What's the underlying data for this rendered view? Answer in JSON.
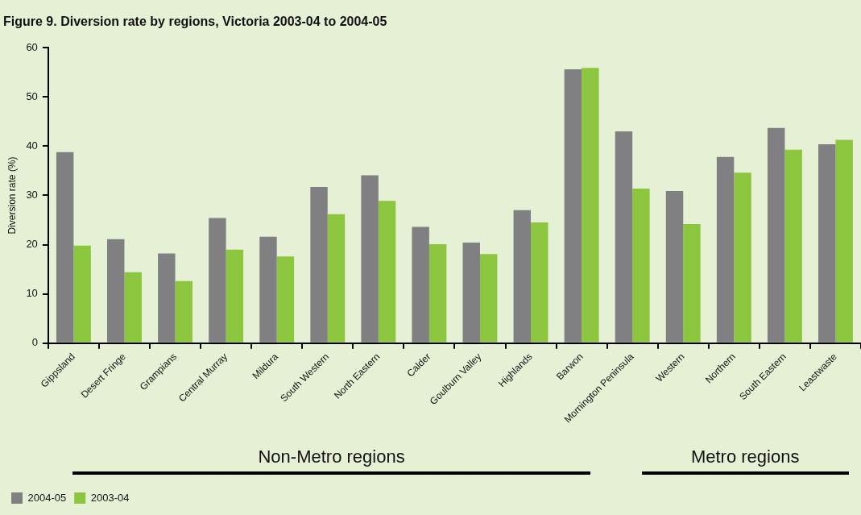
{
  "chart_data": {
    "type": "bar",
    "title": "Figure 9. Diversion rate by regions, Victoria 2003-04 to 2004-05",
    "ylabel": "Diversion rate (%)",
    "categories": [
      "Gippsland",
      "Desert Fringe",
      "Grampians",
      "Central Murray",
      "Mildura",
      "South Western",
      "North Eastern",
      "Calder",
      "Goulburn Valley",
      "Highlands",
      "Barwon",
      "Mornington Peninsula",
      "Western",
      "Northern",
      "South Eastern",
      "Leastwaste"
    ],
    "series": [
      {
        "name": "2004-05",
        "color": "#808083",
        "values": [
          38.8,
          21.1,
          18.2,
          25.4,
          21.6,
          31.7,
          34.1,
          23.6,
          20.4,
          27.0,
          55.6,
          43.0,
          30.9,
          37.8,
          43.7,
          40.4
        ]
      },
      {
        "name": "2003-04",
        "color": "#8cc63f",
        "values": [
          19.8,
          14.4,
          12.6,
          19.0,
          17.6,
          26.2,
          28.9,
          20.1,
          18.1,
          24.5,
          55.9,
          31.4,
          24.2,
          34.6,
          39.3,
          41.3
        ]
      }
    ],
    "ylim": [
      0,
      60
    ],
    "yticks": [
      0,
      10,
      20,
      30,
      40,
      50,
      60
    ],
    "grid": false,
    "legend": "bottom left",
    "annotations": [
      "Non-Metro regions",
      "Metro regions"
    ]
  }
}
